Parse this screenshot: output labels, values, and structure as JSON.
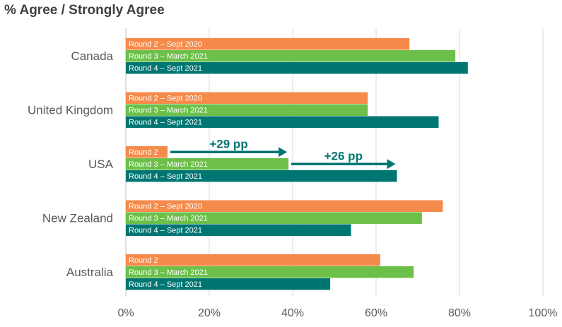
{
  "chart_data": {
    "type": "bar",
    "orientation": "horizontal",
    "title": "% Agree / Strongly Agree",
    "categories": [
      "Canada",
      "United Kingdom",
      "USA",
      "New Zealand",
      "Australia"
    ],
    "xlim": [
      0,
      100
    ],
    "xticks": [
      "0%",
      "20%",
      "40%",
      "60%",
      "80%",
      "100%"
    ],
    "grid": true,
    "series": [
      {
        "color": "#F58A4B",
        "values": [
          68,
          58,
          10,
          76,
          61
        ],
        "labels": [
          "Round 2 – Sept 2020",
          "Round 2 – Sept 2020",
          "Round 2",
          "Round 2 – Sept 2020",
          "Round 2"
        ]
      },
      {
        "color": "#6CC04A",
        "values": [
          79,
          58,
          39,
          71,
          69
        ],
        "labels": [
          "Round 3 – March 2021",
          "Round 3 – March 2021",
          "Round 3 – March 2021",
          "Round 3 – March 2021",
          "Round 3 – March 2021"
        ]
      },
      {
        "color": "#007672",
        "values": [
          82,
          75,
          65,
          54,
          49
        ],
        "labels": [
          "Round 4 – Sept 2021",
          "Round 4 – Sept 2021",
          "Round 4 – Sept 2021",
          "Round 4 – Sept 2021",
          "Round 4 – Sept 2021"
        ]
      }
    ],
    "annotations": [
      {
        "text": "+29 pp",
        "category": "USA",
        "from": 10,
        "to": 39
      },
      {
        "text": "+26 pp",
        "category": "USA",
        "from": 39,
        "to": 65
      }
    ],
    "colors": {
      "grid": "#d9d9d9",
      "axis_text": "#595959",
      "annotation": "#007672"
    }
  }
}
